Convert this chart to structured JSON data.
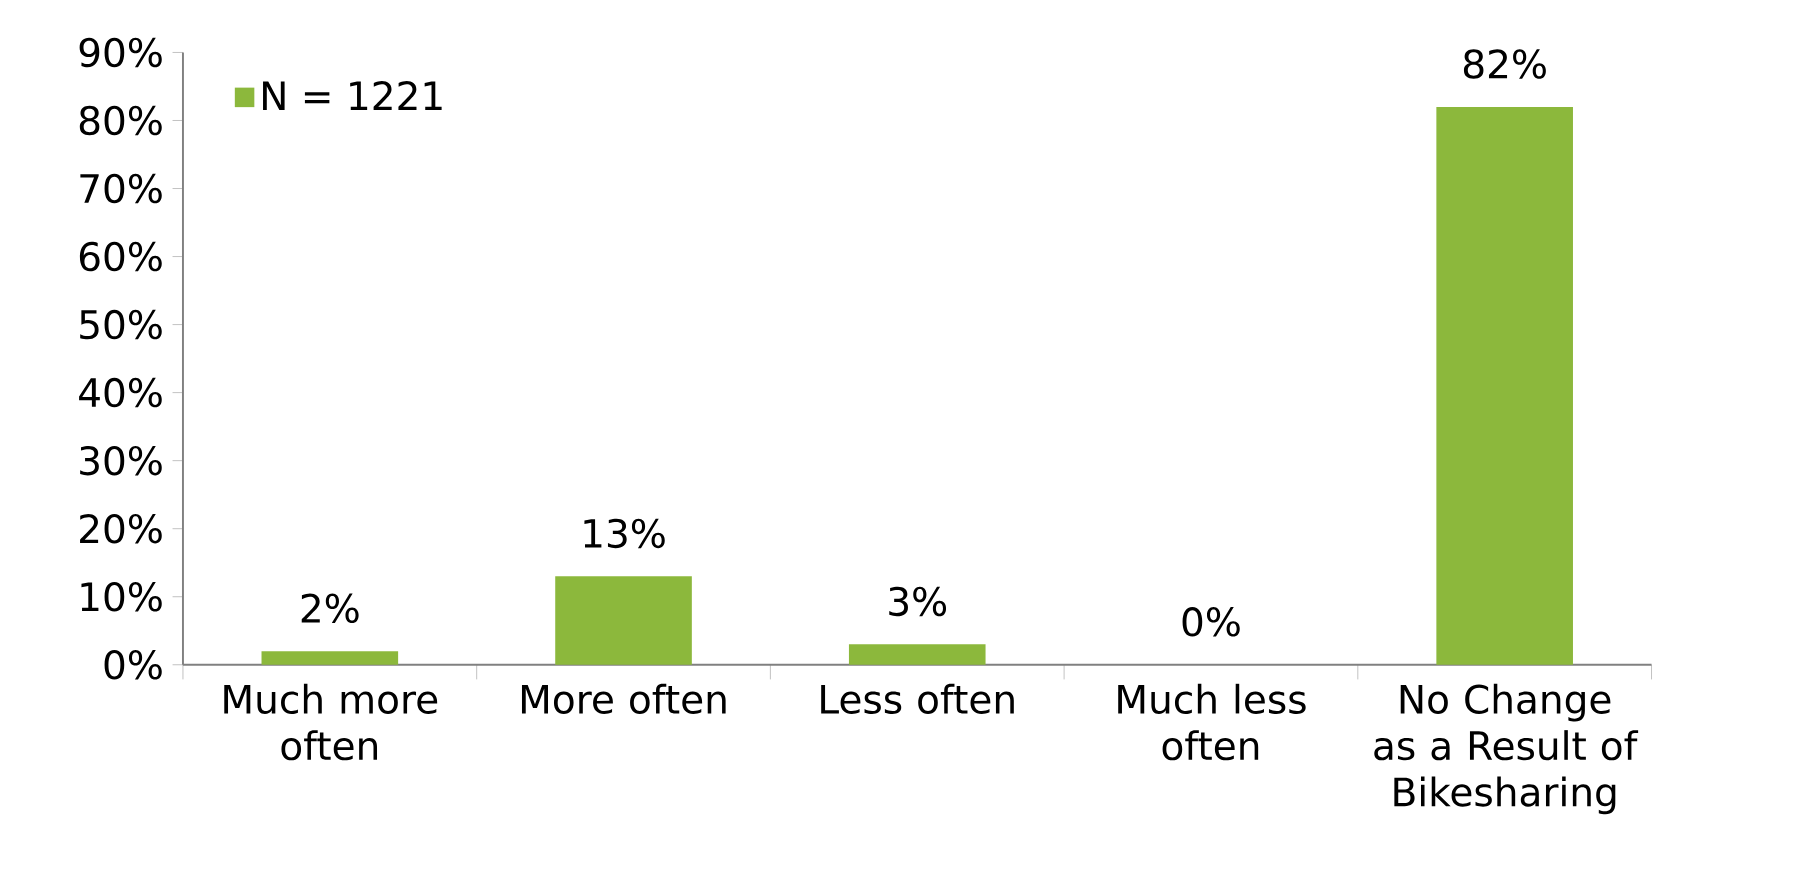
{
  "chart_data": {
    "type": "bar",
    "categories": [
      "Much more often",
      "More often",
      "Less often",
      "Much less often",
      "No Change as a Result of Bikesharing"
    ],
    "series": [
      {
        "name": "N = 1221",
        "color": "#8cb83c",
        "values": [
          2,
          13,
          3,
          0,
          82
        ],
        "value_labels": [
          "2%",
          "13%",
          "3%",
          "0%",
          "82%"
        ]
      }
    ],
    "ylim": [
      0,
      90
    ],
    "yticks": [
      {
        "value": 0,
        "label": "0%"
      },
      {
        "value": 10,
        "label": "10%"
      },
      {
        "value": 20,
        "label": "20%"
      },
      {
        "value": 30,
        "label": "30%"
      },
      {
        "value": 40,
        "label": "40%"
      },
      {
        "value": 50,
        "label": "50%"
      },
      {
        "value": 60,
        "label": "60%"
      },
      {
        "value": 70,
        "label": "70%"
      },
      {
        "value": 80,
        "label": "80%"
      },
      {
        "value": 90,
        "label": "90%"
      }
    ],
    "legend": "top left",
    "grid": false
  }
}
